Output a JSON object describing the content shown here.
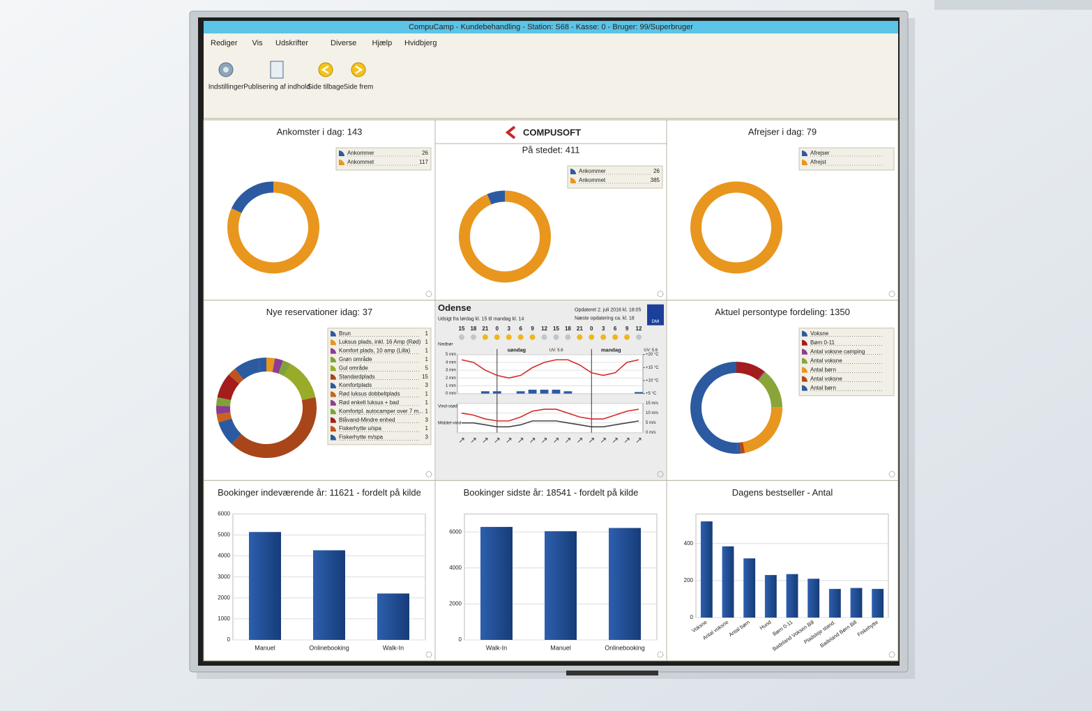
{
  "window_title": "CompuCamp - Kundebehandling - Station: S68 - Kasse: 0 - Bruger: 99/Superbruger",
  "menu": [
    "Rediger",
    "Vis",
    "Udskrifter",
    "Diverse",
    "Hjælp",
    "Hvidbjerg"
  ],
  "toolbar": [
    "Indstillinger",
    "Publisering af indhold",
    "Side tilbage",
    "Side frem"
  ],
  "logo": "COMPUSOFT",
  "panels": [
    {
      "type": "donut",
      "title": "Ankomster i dag: 143",
      "categories": [
        "Ankommer",
        "Ankommet"
      ],
      "values": [
        26,
        117
      ],
      "colors": [
        "#2c5aa0",
        "#e8961e"
      ],
      "legend_values": true
    },
    {
      "type": "donut",
      "title": "På stedet: 411",
      "categories": [
        "Ankommer",
        "Ankommet"
      ],
      "values": [
        26,
        385
      ],
      "colors": [
        "#2c5aa0",
        "#e8961e"
      ],
      "legend_values": true
    },
    {
      "type": "donut",
      "title": "Afrejser i dag: 79",
      "categories": [
        "Afrejser",
        "Afrejst"
      ],
      "values": [
        0,
        79
      ],
      "colors": [
        "#2c5aa0",
        "#e8961e"
      ],
      "legend_values": false
    },
    {
      "type": "donut",
      "title": "Nye reservationer idag: 37",
      "categories": [
        "Brun",
        "Luksus plads, inkl. 16 Amp (Rød)",
        "Komfort plads, 10 amp (Lilla)",
        "Grøn område",
        "Gul område",
        "Standardplads",
        "Komfortplads",
        "Rød luksus dobbeltplads",
        "Rød enkelt luksus + bad",
        "Komfortpl. autocamper over 7 m...",
        "Blåvand-Mindre enhed",
        "Fiskerhytte u/spa",
        "Fiskerhytte m/spa"
      ],
      "values": [
        1,
        1,
        1,
        1,
        5,
        15,
        3,
        1,
        1,
        1,
        3,
        1,
        3
      ],
      "colors": [
        "#2c5aa0",
        "#e8961e",
        "#8c3d8f",
        "#7fa33a",
        "#9aab2a",
        "#a8461a",
        "#2c5aa0",
        "#c8641e",
        "#8c3d8f",
        "#7fa33a",
        "#a31d1d",
        "#c0541c",
        "#2c5aa0"
      ],
      "legend_values": true
    },
    {
      "type": "weather",
      "city": "Odense",
      "period": "Udsigt fra lørdag kl. 15 til mandag kl. 14",
      "updated": "Opdateret 2. juli 2016 kl. 18:05",
      "next_update": "Næste opdatering ca. kl. 18",
      "provider": "DMI",
      "hours": [
        "15",
        "18",
        "21",
        "0",
        "3",
        "6",
        "9",
        "12",
        "15",
        "18",
        "21",
        "0",
        "3",
        "6",
        "9",
        "12"
      ],
      "days": [
        "søndag",
        "mandag"
      ],
      "uv": [
        "UV: 5.6",
        "UV: 5.6"
      ],
      "precip_label": "Nedbør",
      "gust_label": "Vind-stød",
      "mean_label": "Middel-vind",
      "temperature": [
        18,
        17,
        14,
        12,
        11,
        12,
        15,
        17,
        18,
        18,
        16,
        13,
        12,
        13,
        17,
        18
      ],
      "precipitation": [
        0,
        0,
        0.3,
        0.3,
        0,
        0.3,
        0.5,
        0.5,
        0.5,
        0.3,
        0,
        0,
        0,
        0,
        0,
        0.2
      ],
      "gust": [
        10,
        9,
        7,
        6,
        6,
        8,
        11,
        12,
        12,
        10,
        8,
        7,
        7,
        9,
        11,
        12
      ],
      "mean_wind": [
        5,
        5,
        4,
        3,
        3,
        4,
        6,
        6,
        6,
        5,
        4,
        3,
        3,
        4,
        5,
        6
      ],
      "temp_ylim": [
        5,
        20
      ],
      "temp_yticks": [
        {
          "value": 20,
          "label": "+20 °C"
        },
        {
          "value": 15,
          "label": "+15 °C"
        },
        {
          "value": 10,
          "label": "+10 °C"
        },
        {
          "value": 5,
          "label": "+5 °C"
        }
      ],
      "precip_ylim": [
        0,
        5
      ],
      "precip_yticks": [
        {
          "value": 5,
          "label": "5 mm"
        },
        {
          "value": 4,
          "label": "4 mm"
        },
        {
          "value": 3,
          "label": "3 mm"
        },
        {
          "value": 2,
          "label": "2 mm"
        },
        {
          "value": 1,
          "label": "1 mm"
        },
        {
          "value": 0,
          "label": "0 mm"
        }
      ],
      "wind_ylim": [
        0,
        15
      ],
      "wind_yticks": [
        {
          "value": 15,
          "label": "15 m/s"
        },
        {
          "value": 10,
          "label": "10 m/s"
        },
        {
          "value": 5,
          "label": "5 m/s"
        },
        {
          "value": 0,
          "label": "0 m/s"
        }
      ]
    },
    {
      "type": "donut",
      "title": "Aktuel persontype fordeling: 1350",
      "categories": [
        "Voksne",
        "Børn 0-11",
        "Antal voksne camping",
        "Antal voksne",
        "Antal børn",
        "Antal voksne",
        "Antal børn"
      ],
      "values": [
        680,
        140,
        5,
        190,
        300,
        20,
        15
      ],
      "colors": [
        "#2c5aa0",
        "#a31d1d",
        "#8c3d8f",
        "#8aa43a",
        "#e8961e",
        "#b5461b",
        "#2c5aa0"
      ],
      "legend_values": false
    },
    {
      "type": "bar",
      "title": "Bookinger indeværende år: 11621 - fordelt på kilde",
      "categories": [
        "Manuel",
        "Onlinebooking",
        "Walk-In"
      ],
      "values": [
        5140,
        4270,
        2211
      ],
      "color": "#1f4e96",
      "ylim": [
        0,
        6000
      ],
      "yticks": [
        0,
        1000,
        2000,
        3000,
        4000,
        5000,
        6000
      ]
    },
    {
      "type": "bar",
      "title": "Bookinger sidste år: 18541 - fordelt på kilde",
      "categories": [
        "Walk-In",
        "Manuel",
        "Onlinebooking"
      ],
      "values": [
        6280,
        6040,
        6221
      ],
      "color": "#1f4e96",
      "ylim": [
        0,
        7000
      ],
      "yticks": [
        0,
        2000,
        4000,
        6000
      ]
    },
    {
      "type": "bar",
      "title": "Dagens bestseller - Antal",
      "categories": [
        "Voksne",
        "Antal voksne",
        "Antal børn",
        "Hund",
        "Børn 0-11",
        "Badeland Voksen Bill",
        "Pladsleje stand.",
        "Badeland Børn Bill",
        "Fiskehytte"
      ],
      "values": [
        520,
        385,
        320,
        230,
        235,
        210,
        155,
        160,
        155
      ],
      "color": "#1f4e96",
      "ylim": [
        0,
        560
      ],
      "yticks": [
        0,
        200,
        400
      ],
      "rotate_labels": true
    }
  ]
}
